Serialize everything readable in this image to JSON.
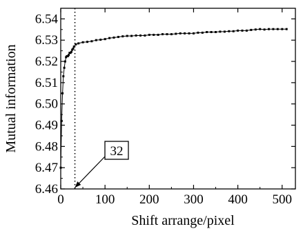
{
  "chart_data": {
    "type": "scatter",
    "xlabel": "Shift arrange/pixel",
    "ylabel": "Mutual information",
    "xlim": [
      0,
      530
    ],
    "ylim": [
      6.46,
      6.545
    ],
    "x_ticks": [
      0,
      100,
      200,
      300,
      400,
      500
    ],
    "x_tick_labels": [
      "0",
      "100",
      "200",
      "300",
      "400",
      "500"
    ],
    "y_ticks": [
      6.46,
      6.47,
      6.48,
      6.49,
      6.5,
      6.51,
      6.52,
      6.53,
      6.54
    ],
    "y_tick_labels": [
      "6.46",
      "6.47",
      "6.48",
      "6.49",
      "6.50",
      "6.51",
      "6.52",
      "6.53",
      "6.54"
    ],
    "grid": false,
    "marker": "small filled square",
    "vline_x": 32,
    "annotation": {
      "text": "32",
      "points_to_x": 32
    },
    "series": [
      {
        "x": [
          0,
          2,
          4,
          6,
          8,
          10,
          12,
          14,
          16,
          18,
          20,
          22,
          24,
          26,
          28,
          30,
          34,
          40,
          50,
          60,
          70,
          80,
          90,
          100,
          110,
          120,
          130,
          140,
          150,
          160,
          170,
          180,
          190,
          200,
          210,
          220,
          230,
          240,
          250,
          260,
          270,
          280,
          290,
          300,
          310,
          320,
          330,
          340,
          350,
          360,
          370,
          380,
          390,
          400,
          410,
          420,
          430,
          440,
          450,
          460,
          470,
          480,
          490,
          500,
          510
        ],
        "y": [
          6.47,
          6.492,
          6.505,
          6.513,
          6.517,
          6.52,
          6.522,
          6.5225,
          6.5225,
          6.523,
          6.524,
          6.524,
          6.5245,
          6.5255,
          6.526,
          6.527,
          6.528,
          6.5285,
          6.529,
          6.5292,
          6.5295,
          6.53,
          6.5302,
          6.5305,
          6.531,
          6.5312,
          6.5315,
          6.5318,
          6.532,
          6.532,
          6.5322,
          6.5322,
          6.5322,
          6.5325,
          6.5325,
          6.5325,
          6.5328,
          6.5328,
          6.5328,
          6.533,
          6.5332,
          6.5332,
          6.5332,
          6.5332,
          6.5335,
          6.5335,
          6.5338,
          6.5338,
          6.5338,
          6.534,
          6.534,
          6.5342,
          6.5342,
          6.5345,
          6.5345,
          6.5345,
          6.5348,
          6.535,
          6.5352,
          6.535,
          6.5352,
          6.5352,
          6.5352,
          6.5352,
          6.5352
        ]
      }
    ]
  }
}
